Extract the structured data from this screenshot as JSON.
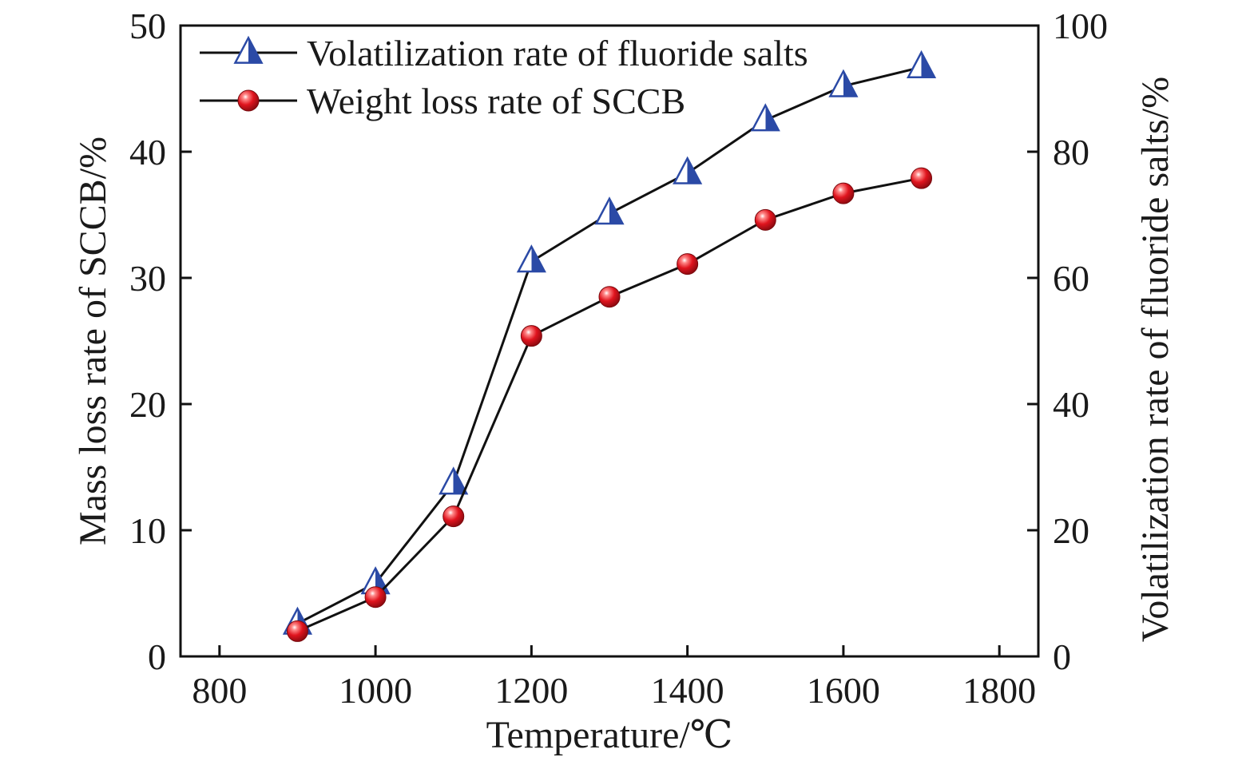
{
  "chart_data": {
    "type": "line",
    "xlabel": "Temperature/℃",
    "ylabel": "Mass loss rate of SCCB/%",
    "ylabel_right": "Volatilization rate of fluoride salts/%",
    "xlim": [
      750,
      1850
    ],
    "ylim": [
      0,
      50
    ],
    "ylim_right": [
      0,
      100
    ],
    "xticks": [
      800,
      1000,
      1200,
      1400,
      1600,
      1800
    ],
    "yticks": [
      0,
      10,
      20,
      30,
      40,
      50
    ],
    "yticks_right": [
      0,
      20,
      40,
      60,
      80,
      100
    ],
    "grid": false,
    "legend_position": "top-left",
    "series": [
      {
        "name": "Volatilization rate of fluoride salts",
        "axis": "right",
        "marker": "triangle",
        "color": "#2b4aa6",
        "x": [
          900,
          1000,
          1100,
          1200,
          1300,
          1400,
          1500,
          1600,
          1700
        ],
        "values": [
          5.2,
          11.6,
          27.4,
          62.6,
          70.2,
          76.6,
          85.0,
          90.4,
          93.4
        ]
      },
      {
        "name": "Weight loss rate of SCCB",
        "axis": "left",
        "marker": "circle",
        "color": "#e0141e",
        "x": [
          900,
          1000,
          1100,
          1200,
          1300,
          1400,
          1500,
          1600,
          1700
        ],
        "values": [
          2.0,
          4.7,
          11.1,
          25.4,
          28.5,
          31.1,
          34.6,
          36.7,
          37.9
        ]
      }
    ]
  }
}
